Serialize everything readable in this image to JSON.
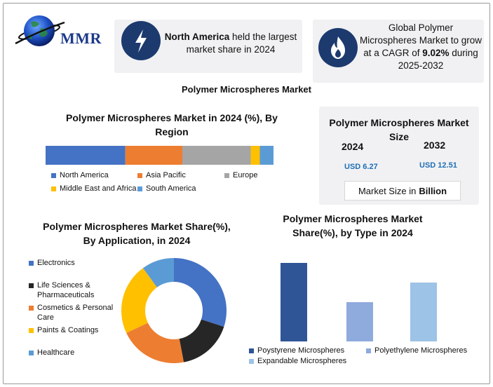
{
  "brand": {
    "logo_text": "MMR"
  },
  "highlight_1": {
    "bold": "North America",
    "text": " held the largest market share in 2024",
    "icon": "lightning-icon"
  },
  "highlight_2": {
    "text": "Global Polymer Microspheres Market to grow at a CAGR of ",
    "bold": "9.02%",
    "text_after": " during 2025-2032",
    "icon": "flame-icon"
  },
  "main_title": "Polymer Microspheres Market",
  "market_size": {
    "title": "Polymer Microspheres Market Size",
    "year_start": "2024",
    "year_end": "2032",
    "value_start": "USD 6.27",
    "value_end": "USD 12.51",
    "unit_prefix": "Market Size in",
    "unit_bold": "Billion"
  },
  "chart_data": [
    {
      "type": "bar",
      "orientation": "stacked-horizontal",
      "title": "Polymer Microspheres Market in 2024 (%), By Region",
      "series": [
        {
          "name": "North America",
          "value": 35,
          "color": "#4472c4"
        },
        {
          "name": "Asia Pacific",
          "value": 25,
          "color": "#ed7d31"
        },
        {
          "name": "Europe",
          "value": 30,
          "color": "#a5a5a5"
        },
        {
          "name": "Middle East and Africa",
          "value": 4,
          "color": "#ffc000"
        },
        {
          "name": "South America",
          "value": 6,
          "color": "#5b9bd5"
        }
      ]
    },
    {
      "type": "pie",
      "style": "donut",
      "title": "Polymer Microspheres Market Share(%), By Application, in 2024",
      "categories": [
        "Electronics",
        "Life Sciences & Pharmaceuticals",
        "Cosmetics & Personal Care",
        "Paints & Coatings",
        "Healthcare"
      ],
      "values": [
        30,
        17,
        21,
        22,
        10
      ],
      "colors": [
        "#4472c4",
        "#262626",
        "#ed7d31",
        "#ffc000",
        "#5b9bd5"
      ]
    },
    {
      "type": "bar",
      "title": "Polymer Microspheres Market Share(%), by Type in 2024",
      "categories": [
        "Poystyrene Microspheres",
        "Polyethylene Microspheres",
        "Expandable Microspheres"
      ],
      "values": [
        56,
        28,
        42
      ],
      "ylim": [
        0,
        60
      ],
      "colors": [
        "#2f5597",
        "#8faadc",
        "#9dc3e6"
      ]
    }
  ]
}
